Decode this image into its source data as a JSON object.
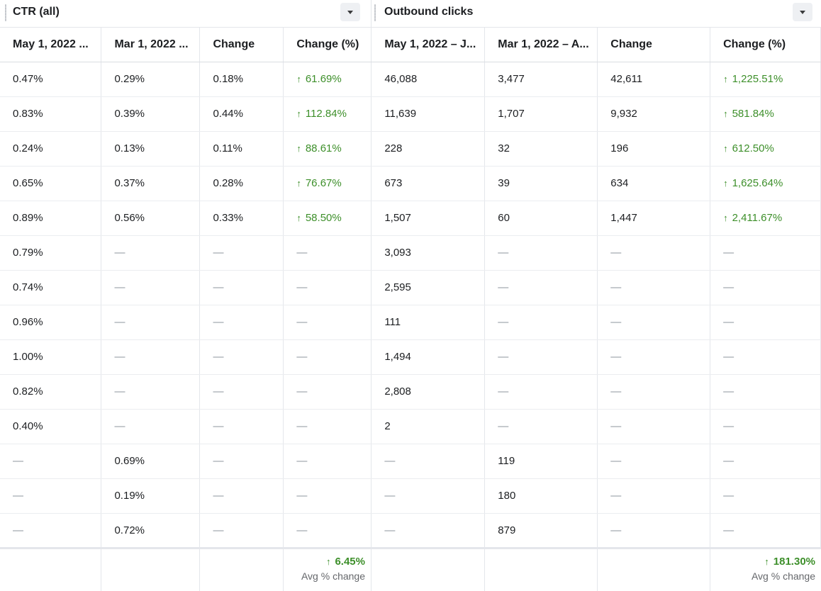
{
  "groups": [
    {
      "title": "CTR (all)"
    },
    {
      "title": "Outbound clicks"
    }
  ],
  "columns": [
    "May 1, 2022 ...",
    "Mar 1, 2022 ...",
    "Change",
    "Change (%)",
    "May 1, 2022 – J...",
    "Mar 1, 2022 – A...",
    "Change",
    "Change (%)"
  ],
  "rows": [
    [
      "0.47%",
      "0.29%",
      "0.18%",
      "↑ 61.69%",
      "46,088",
      "3,477",
      "42,611",
      "↑ 1,225.51%"
    ],
    [
      "0.83%",
      "0.39%",
      "0.44%",
      "↑ 112.84%",
      "11,639",
      "1,707",
      "9,932",
      "↑ 581.84%"
    ],
    [
      "0.24%",
      "0.13%",
      "0.11%",
      "↑ 88.61%",
      "228",
      "32",
      "196",
      "↑ 612.50%"
    ],
    [
      "0.65%",
      "0.37%",
      "0.28%",
      "↑ 76.67%",
      "673",
      "39",
      "634",
      "↑ 1,625.64%"
    ],
    [
      "0.89%",
      "0.56%",
      "0.33%",
      "↑ 58.50%",
      "1,507",
      "60",
      "1,447",
      "↑ 2,411.67%"
    ],
    [
      "0.79%",
      "—",
      "—",
      "—",
      "3,093",
      "—",
      "—",
      "—"
    ],
    [
      "0.74%",
      "—",
      "—",
      "—",
      "2,595",
      "—",
      "—",
      "—"
    ],
    [
      "0.96%",
      "—",
      "—",
      "—",
      "111",
      "—",
      "—",
      "—"
    ],
    [
      "1.00%",
      "—",
      "—",
      "—",
      "1,494",
      "—",
      "—",
      "—"
    ],
    [
      "0.82%",
      "—",
      "—",
      "—",
      "2,808",
      "—",
      "—",
      "—"
    ],
    [
      "0.40%",
      "—",
      "—",
      "—",
      "2",
      "—",
      "—",
      "—"
    ],
    [
      "—",
      "0.69%",
      "—",
      "—",
      "—",
      "119",
      "—",
      "—"
    ],
    [
      "—",
      "0.19%",
      "—",
      "—",
      "—",
      "180",
      "—",
      "—"
    ],
    [
      "—",
      "0.72%",
      "—",
      "—",
      "—",
      "879",
      "—",
      "—"
    ]
  ],
  "summary": {
    "ctr": {
      "value": "6.45%",
      "label": "Avg % change"
    },
    "outbound": {
      "value": "181.30%",
      "label": "Avg % change"
    }
  },
  "colors": {
    "positive": "#3d8f2a",
    "border": "#e4e6eb",
    "dash": "#8d949e"
  },
  "icons": {
    "up": "↑",
    "dropdown": "caret-down-icon"
  }
}
